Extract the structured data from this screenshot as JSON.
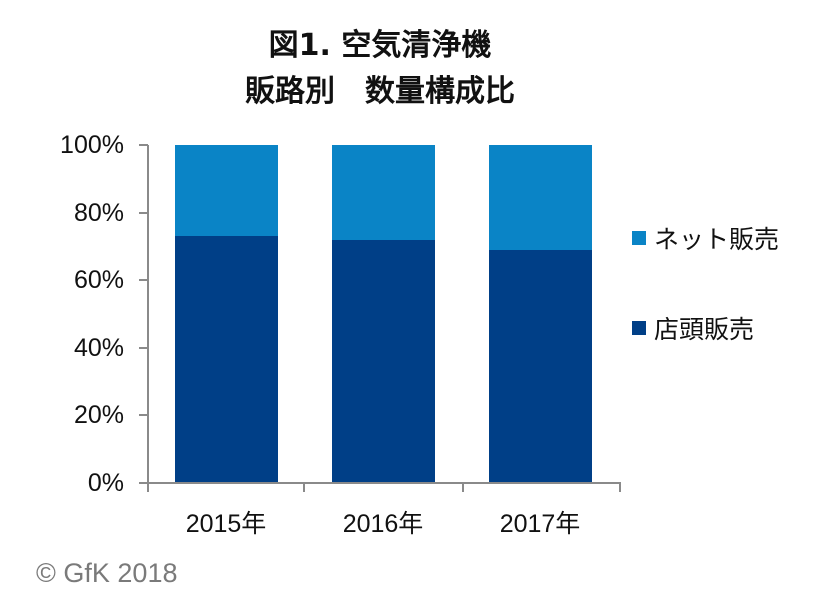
{
  "title": {
    "line1": "図1. 空気清浄機",
    "line2": "販路別　数量構成比"
  },
  "y_axis": {
    "ticks": [
      "100%",
      "80%",
      "60%",
      "40%",
      "20%",
      "0%"
    ]
  },
  "x_axis": {
    "labels": [
      "2015年",
      "2016年",
      "2017年"
    ]
  },
  "legend": {
    "items": [
      {
        "label": "ネット販売",
        "color": "#0a84c6"
      },
      {
        "label": "店頭販売",
        "color": "#003f87"
      }
    ]
  },
  "copyright": "© GfK 2018",
  "colors": {
    "online": "#0a84c6",
    "store": "#003f87",
    "axis": "#8a8a8a"
  },
  "chart_data": {
    "type": "bar",
    "stacked": true,
    "title": "図1. 空気清浄機 販路別　数量構成比",
    "categories": [
      "2015年",
      "2016年",
      "2017年"
    ],
    "series": [
      {
        "name": "店頭販売",
        "values": [
          73,
          72,
          69
        ],
        "color": "#003f87"
      },
      {
        "name": "ネット販売",
        "values": [
          27,
          28,
          31
        ],
        "color": "#0a84c6"
      }
    ],
    "xlabel": "",
    "ylabel": "",
    "ylim": [
      0,
      100
    ],
    "y_ticks": [
      "0%",
      "20%",
      "40%",
      "60%",
      "80%",
      "100%"
    ],
    "grid": false,
    "legend_position": "right",
    "annotations": [
      "© GfK 2018"
    ]
  }
}
